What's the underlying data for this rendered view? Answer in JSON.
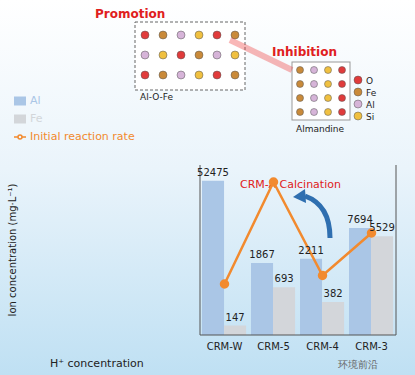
{
  "chart_data": {
    "type": "bar",
    "categories": [
      "CRM-W",
      "CRM-5",
      "CRM-4",
      "CRM-3"
    ],
    "x_label": "H⁺ concentration",
    "y_label": "Ion concentration (mg·L⁻¹)",
    "log": "y",
    "ylim": [
      100,
      100000
    ],
    "y2lim": [
      0,
      1
    ],
    "tick_labels": "x",
    "data_labels": true,
    "legend": "upper left",
    "series": [
      {
        "name": "Al",
        "type": "bar",
        "color": "#aac6e6",
        "values": [
          52475,
          1867,
          2211,
          7694
        ]
      },
      {
        "name": "Fe",
        "type": "bar",
        "color": "#d3d6da",
        "values": [
          147,
          693,
          382,
          5529
        ]
      },
      {
        "name": "Initial reaction rate",
        "type": "line",
        "axis": "y2",
        "color": "#f28a2e",
        "marker": "circle",
        "values": [
          0.3,
          0.9,
          0.35,
          0.6
        ]
      }
    ],
    "annotations": {
      "promotion": "Promotion",
      "inhibition": "Inhibition",
      "structure_left": "Al-O-Fe",
      "structure_right": "Almandine",
      "calcination": "CRM-A Calcination",
      "atoms": [
        "O",
        "Fe",
        "Al",
        "Si"
      ],
      "watermark": "环境前沿"
    }
  }
}
